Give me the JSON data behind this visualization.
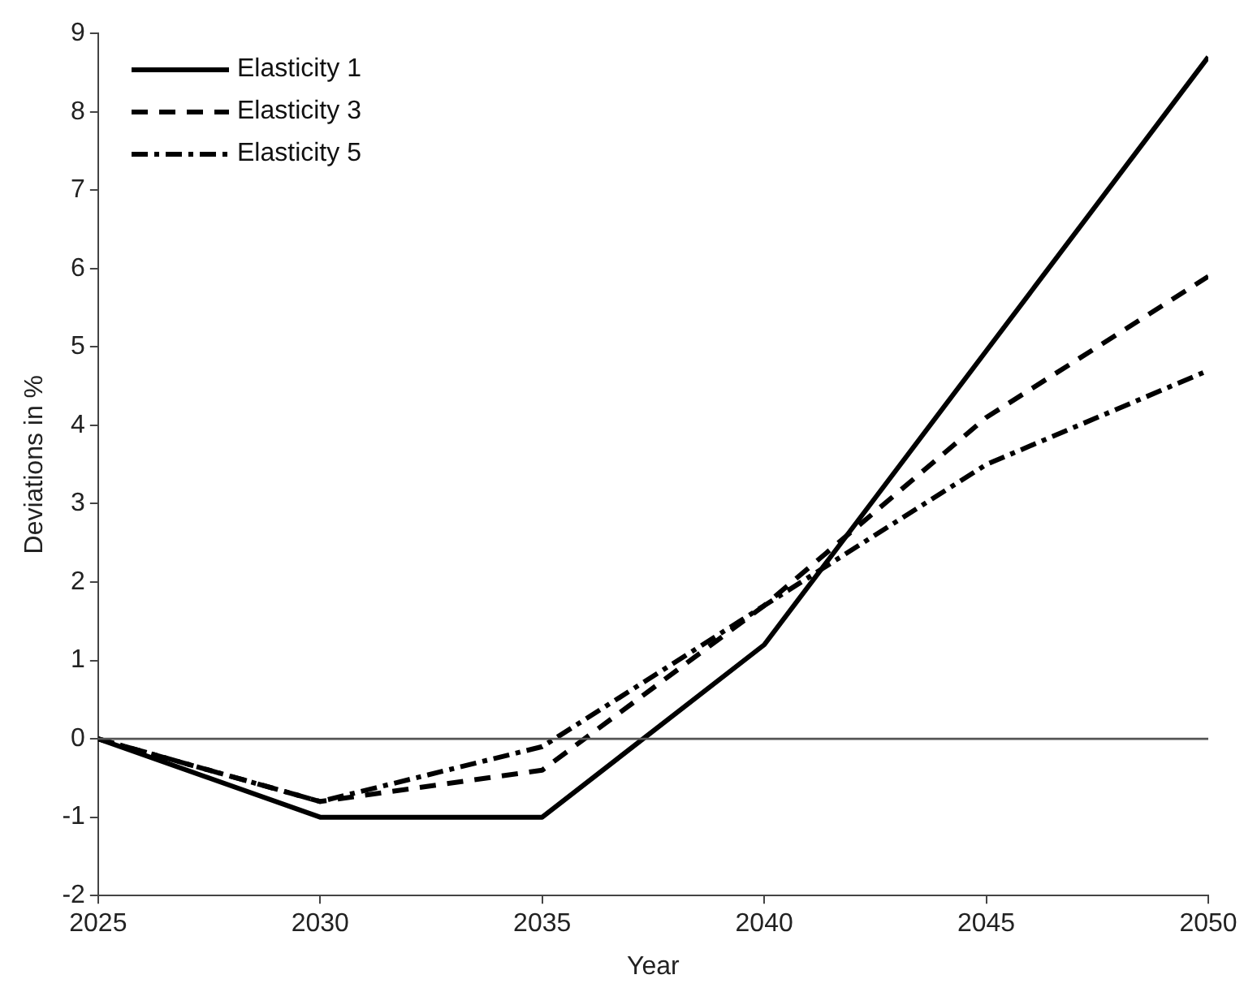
{
  "chart_data": {
    "type": "line",
    "xlabel": "Year",
    "ylabel": "Deviations in %",
    "x": [
      2025,
      2030,
      2035,
      2040,
      2045,
      2050
    ],
    "series": [
      {
        "name": "Elasticity 1",
        "color": "#000000",
        "line_style": "solid",
        "values": [
          0,
          -1,
          -1,
          1.2,
          4.95,
          8.7
        ]
      },
      {
        "name": "Elasticity 3",
        "color": "#000000",
        "line_style": "dashed",
        "values": [
          0,
          -0.8,
          -0.4,
          1.7,
          4.1,
          5.9
        ]
      },
      {
        "name": "Elasticity 5",
        "color": "#000000",
        "line_style": "dashdot",
        "values": [
          0,
          -0.8,
          -0.1,
          1.7,
          3.5,
          4.7
        ]
      }
    ],
    "xlim": [
      2025,
      2050
    ],
    "xticks": [
      2025,
      2030,
      2035,
      2040,
      2045,
      2050
    ],
    "ylim": [
      -2,
      9
    ],
    "yticks": [
      -2,
      -1,
      0,
      1,
      2,
      3,
      4,
      5,
      6,
      7,
      8,
      9
    ],
    "ref_lines": [
      {
        "axis": "y",
        "value": 0,
        "color": "#555555"
      }
    ],
    "grid": false,
    "legend": "top left",
    "marker": "none"
  }
}
